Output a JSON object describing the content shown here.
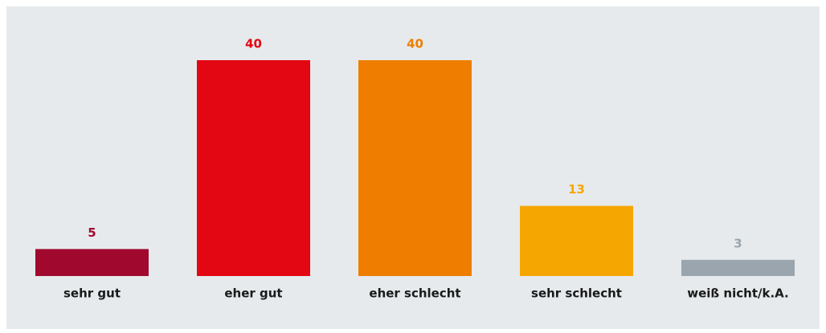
{
  "chart_data": {
    "type": "bar",
    "categories": [
      "sehr gut",
      "eher gut",
      "eher schlecht",
      "sehr schlecht",
      "weiß nicht/k.A."
    ],
    "values": [
      5,
      40,
      40,
      13,
      3
    ],
    "colors": [
      "#a0082e",
      "#e30613",
      "#ef7d00",
      "#f6a600",
      "#9aa5ad"
    ]
  }
}
